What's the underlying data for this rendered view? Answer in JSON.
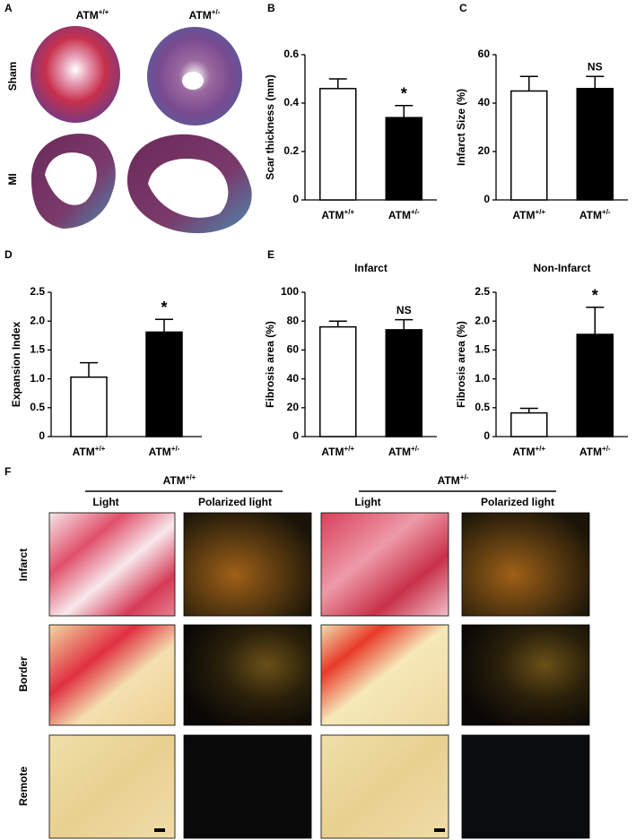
{
  "panels": {
    "a": "A",
    "b": "B",
    "c": "C",
    "d": "D",
    "e": "E",
    "f": "F"
  },
  "panel_a": {
    "columns": [
      "ATM+/+",
      "ATM+/-"
    ],
    "rows": [
      "Sham",
      "MI"
    ]
  },
  "chart_data": [
    {
      "type": "bar",
      "y_label": "Scar  thickness  (mm)",
      "categories": [
        "ATM+/+",
        "ATM+/-"
      ],
      "values": [
        0.46,
        0.34
      ],
      "errors": [
        0.04,
        0.05
      ],
      "colors": [
        "#ffffff",
        "#000000"
      ],
      "bar_labels": [
        null,
        "*"
      ],
      "ylim": [
        0,
        0.6
      ],
      "yticks": [
        0,
        0.2,
        0.4,
        0.6
      ]
    },
    {
      "type": "bar",
      "y_label": "Infarct Size (%)",
      "categories": [
        "ATM+/+",
        "ATM+/-"
      ],
      "values": [
        45,
        46
      ],
      "errors": [
        6,
        5
      ],
      "colors": [
        "#ffffff",
        "#000000"
      ],
      "bar_labels": [
        null,
        "NS"
      ],
      "ylim": [
        0,
        60
      ],
      "yticks": [
        0,
        20,
        40,
        60
      ]
    },
    {
      "type": "bar",
      "y_label": "Expansion Index",
      "categories": [
        "ATM+/+",
        "ATM+/-"
      ],
      "values": [
        1.03,
        1.81
      ],
      "errors": [
        0.25,
        0.22
      ],
      "colors": [
        "#ffffff",
        "#000000"
      ],
      "bar_labels": [
        null,
        "*"
      ],
      "ylim": [
        0,
        2.5
      ],
      "yticks": [
        0,
        0.5,
        {
          "value": 1,
          "label": "1.0"
        },
        1.5,
        {
          "value": 2,
          "label": "2.0"
        },
        2.5
      ]
    },
    {
      "type": "bar",
      "title": "Infarct",
      "y_label": "Fibrosis area (%)",
      "categories": [
        "ATM+/+",
        "ATM+/-"
      ],
      "values": [
        76,
        74
      ],
      "errors": [
        4,
        7
      ],
      "colors": [
        "#ffffff",
        "#000000"
      ],
      "bar_labels": [
        null,
        "NS"
      ],
      "ylim": [
        0,
        100
      ],
      "yticks": [
        0,
        20,
        40,
        60,
        80,
        100
      ]
    },
    {
      "type": "bar",
      "title": "Non-Infarct",
      "y_label": "Fibrosis area (%)",
      "categories": [
        "ATM+/+",
        "ATM+/-"
      ],
      "values": [
        0.41,
        1.77
      ],
      "errors": [
        0.08,
        0.47
      ],
      "colors": [
        "#ffffff",
        "#000000"
      ],
      "bar_labels": [
        null,
        "*"
      ],
      "ylim": [
        0,
        2.5
      ],
      "yticks": [
        0,
        0.5,
        {
          "value": 1,
          "label": "1.0"
        },
        1.5,
        {
          "value": 2,
          "label": "2.0"
        },
        2.5
      ]
    }
  ],
  "panel_f": {
    "groups": [
      "ATM+/+",
      "ATM+/-"
    ],
    "columns": [
      "Light",
      "Polarized light",
      "Light",
      "Polarized light"
    ],
    "rows": [
      "Infarct",
      "Border",
      "Remote"
    ]
  }
}
